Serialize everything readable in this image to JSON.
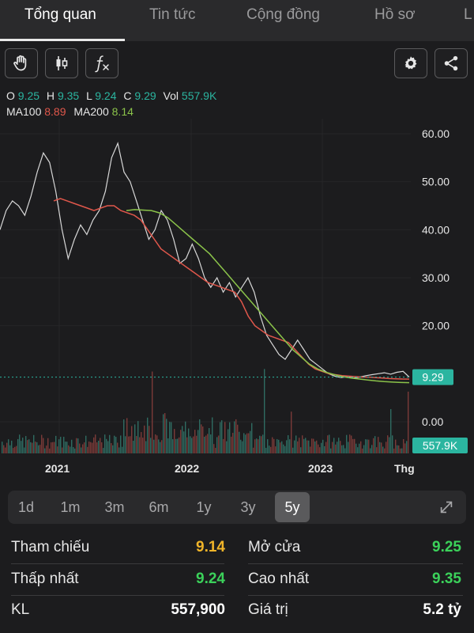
{
  "tabs": [
    "Tổng quan",
    "Tin tức",
    "Cộng đồng",
    "Hồ sơ",
    "L"
  ],
  "toolbar": {
    "icons": [
      "hand-icon",
      "candlestick-icon",
      "function-icon",
      "gear-icon",
      "share-icon"
    ]
  },
  "ohlc": {
    "o_label": "O",
    "o": "9.25",
    "h_label": "H",
    "h": "9.35",
    "l_label": "L",
    "l": "9.24",
    "c_label": "C",
    "c": "9.29",
    "vol_label": "Vol",
    "vol": "557.9K"
  },
  "ma": {
    "ma100_label": "MA100",
    "ma100": "8.89",
    "ma200_label": "MA200",
    "ma200": "8.14"
  },
  "chart_data": {
    "type": "line",
    "y_ticks": [
      "60.00",
      "50.00",
      "40.00",
      "30.00",
      "20.00",
      "0.00"
    ],
    "x_ticks": [
      "2021",
      "2022",
      "2023",
      "Thg"
    ],
    "price_badge": "9.29",
    "volume_badge": "557.9K",
    "ylim": [
      0,
      65
    ],
    "series": [
      {
        "values": [
          40,
          44,
          46,
          45,
          43,
          47,
          52,
          56,
          54,
          48,
          40,
          34,
          38,
          41,
          39,
          42,
          44,
          48,
          55,
          58,
          52,
          50,
          46,
          42,
          38,
          40,
          44,
          42,
          38,
          33,
          34,
          37,
          34,
          30,
          28,
          30,
          27,
          29,
          26,
          28,
          30,
          27,
          22,
          18,
          16,
          14,
          13,
          15,
          17,
          15,
          13,
          12,
          11,
          10,
          9.5,
          9.2,
          9.4,
          9.1,
          9.3,
          9.6,
          9.8,
          10,
          10.2,
          9.9,
          10.3,
          10.5,
          9.29
        ]
      },
      {
        "values": [
          46,
          46.5,
          46,
          45.5,
          45,
          44.5,
          44,
          44.5,
          45,
          45,
          44,
          43.5,
          43,
          42,
          40,
          38,
          36,
          35,
          34,
          33,
          32,
          31,
          30,
          29,
          28.5,
          28,
          27.5,
          27,
          25,
          22,
          20,
          19,
          18,
          17.5,
          17,
          16.5,
          15,
          13.5,
          12,
          11,
          10.5,
          10,
          9.8,
          9.6,
          9.5,
          9.4,
          9.3,
          9.3,
          9.2,
          9.1,
          9.0,
          8.95,
          8.9,
          8.89
        ]
      },
      {
        "values": [
          44,
          44.2,
          44.1,
          44,
          43.5,
          42.5,
          41,
          39.5,
          38,
          36.5,
          35,
          33,
          31,
          29,
          27,
          25,
          23,
          21,
          19,
          17,
          15,
          13.5,
          12,
          11,
          10.3,
          9.8,
          9.4,
          9.1,
          8.9,
          8.7,
          8.5,
          8.35,
          8.25,
          8.18,
          8.14
        ]
      }
    ]
  },
  "ranges": [
    "1d",
    "1m",
    "3m",
    "6m",
    "1y",
    "3y",
    "5y"
  ],
  "active_range": "5y",
  "stats": {
    "ref_label": "Tham chiếu",
    "ref_value": "9.14",
    "open_label": "Mở cửa",
    "open_value": "9.25",
    "low_label": "Thấp nhất",
    "low_value": "9.24",
    "high_label": "Cao nhất",
    "high_value": "9.35",
    "vol_label": "KL",
    "vol_value": "557,900",
    "value_label": "Giá trị",
    "value_value": "5.2 tỷ"
  },
  "colors": {
    "accent_green": "#3bd15a",
    "accent_yellow": "#f0b429",
    "teal": "#2bb5a0",
    "ma100": "#e0574b",
    "ma200": "#8bc34a"
  }
}
